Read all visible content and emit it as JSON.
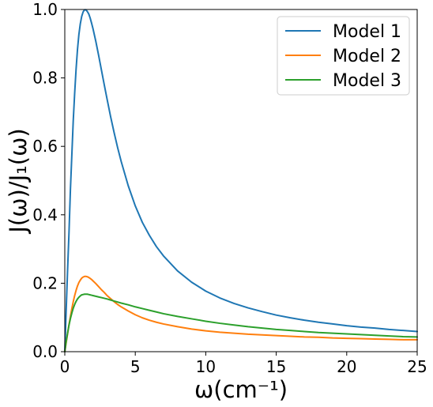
{
  "chart_data": {
    "type": "line",
    "xlabel": "ω(cm⁻¹)",
    "ylabel": "J(ω)/J₁(ω)",
    "xlim": [
      0,
      25
    ],
    "ylim": [
      0,
      1.0
    ],
    "x_ticks": [
      0,
      5,
      10,
      15,
      20,
      25
    ],
    "y_ticks": [
      0.0,
      0.2,
      0.4,
      0.6,
      0.8,
      1.0
    ],
    "x_tick_labels": [
      "0",
      "5",
      "10",
      "15",
      "20",
      "25"
    ],
    "y_tick_labels": [
      "0.0",
      "0.2",
      "0.4",
      "0.6",
      "0.8",
      "1.0"
    ],
    "grid": false,
    "legend_position": "top-right",
    "x": [
      0,
      0.1,
      0.2,
      0.3,
      0.4,
      0.5,
      0.6,
      0.7,
      0.8,
      0.9,
      1.0,
      1.1,
      1.2,
      1.3,
      1.4,
      1.5,
      1.6,
      1.7,
      1.8,
      1.9,
      2.0,
      2.2,
      2.4,
      2.6,
      2.8,
      3.0,
      3.25,
      3.5,
      3.75,
      4.0,
      4.5,
      5.0,
      5.5,
      6.0,
      6.5,
      7.0,
      8.0,
      9.0,
      10.0,
      11.0,
      12.0,
      13.0,
      14.0,
      15.0,
      16.0,
      17.0,
      18.0,
      19.0,
      20.0,
      21.0,
      22.0,
      23.0,
      24.0,
      25.0
    ],
    "series": [
      {
        "name": "Model 1",
        "color": "#1f77b4",
        "values": [
          0,
          0.123,
          0.241,
          0.35,
          0.475,
          0.575,
          0.675,
          0.755,
          0.825,
          0.883,
          0.927,
          0.958,
          0.98,
          0.993,
          0.999,
          0.999,
          0.994,
          0.987,
          0.975,
          0.96,
          0.944,
          0.907,
          0.866,
          0.823,
          0.78,
          0.738,
          0.687,
          0.64,
          0.596,
          0.556,
          0.485,
          0.426,
          0.378,
          0.34,
          0.307,
          0.28,
          0.236,
          0.203,
          0.177,
          0.157,
          0.141,
          0.128,
          0.117,
          0.107,
          0.099,
          0.092,
          0.086,
          0.081,
          0.076,
          0.072,
          0.069,
          0.065,
          0.062,
          0.059
        ]
      },
      {
        "name": "Model 2",
        "color": "#ff7f0e",
        "values": [
          0,
          0.027,
          0.053,
          0.079,
          0.103,
          0.126,
          0.146,
          0.164,
          0.179,
          0.192,
          0.202,
          0.209,
          0.215,
          0.218,
          0.22,
          0.22,
          0.219,
          0.217,
          0.214,
          0.211,
          0.207,
          0.199,
          0.19,
          0.181,
          0.173,
          0.164,
          0.155,
          0.146,
          0.138,
          0.131,
          0.119,
          0.108,
          0.099,
          0.092,
          0.086,
          0.081,
          0.073,
          0.066,
          0.061,
          0.057,
          0.054,
          0.051,
          0.049,
          0.047,
          0.045,
          0.043,
          0.042,
          0.04,
          0.039,
          0.038,
          0.037,
          0.036,
          0.035,
          0.035
        ]
      },
      {
        "name": "Model 3",
        "color": "#2ca02c",
        "values": [
          0,
          0.03,
          0.055,
          0.078,
          0.097,
          0.113,
          0.127,
          0.138,
          0.147,
          0.154,
          0.159,
          0.163,
          0.166,
          0.167,
          0.168,
          0.168,
          0.168,
          0.167,
          0.166,
          0.165,
          0.164,
          0.162,
          0.16,
          0.158,
          0.156,
          0.154,
          0.151,
          0.148,
          0.145,
          0.142,
          0.137,
          0.131,
          0.126,
          0.121,
          0.116,
          0.111,
          0.103,
          0.096,
          0.089,
          0.083,
          0.078,
          0.073,
          0.069,
          0.065,
          0.062,
          0.059,
          0.056,
          0.054,
          0.052,
          0.05,
          0.048,
          0.046,
          0.044,
          0.043
        ]
      }
    ]
  }
}
